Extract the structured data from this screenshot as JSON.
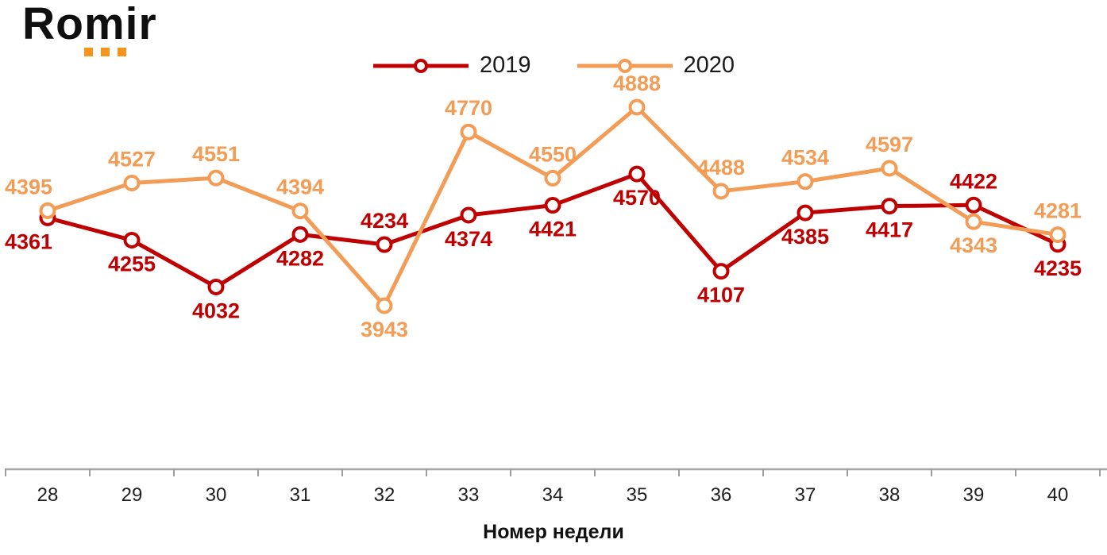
{
  "brand": {
    "name": "Romir",
    "accent_color": "#F7941D"
  },
  "chart_data": {
    "type": "line",
    "title": "",
    "xlabel": "Номер недели",
    "ylabel": "",
    "x": [
      28,
      29,
      30,
      31,
      32,
      33,
      34,
      35,
      36,
      37,
      38,
      39,
      40
    ],
    "ylim": [
      3943,
      4888
    ],
    "grid": false,
    "legend_position": "top-center",
    "axis": {
      "line_color": "#A6A6A6",
      "tick_color": "#9E9E9E",
      "tick_label_color": "#1f1f1f"
    },
    "series": [
      {
        "name": "2019",
        "color": "#C00000",
        "values": [
          4361,
          4255,
          4032,
          4282,
          4234,
          4374,
          4421,
          4570,
          4107,
          4385,
          4417,
          4422,
          4235
        ],
        "label_side": [
          "below",
          "below",
          "below",
          "below",
          "above",
          "below",
          "below",
          "below",
          "below",
          "below",
          "below",
          "above",
          "below"
        ]
      },
      {
        "name": "2020",
        "color": "#F39C55",
        "values": [
          4395,
          4527,
          4551,
          4394,
          3943,
          4770,
          4550,
          4888,
          4488,
          4534,
          4597,
          4343,
          4281
        ],
        "label_side": [
          "above",
          "above",
          "above",
          "above",
          "below",
          "above",
          "above",
          "above",
          "above",
          "above",
          "above",
          "below",
          "above"
        ]
      }
    ]
  }
}
